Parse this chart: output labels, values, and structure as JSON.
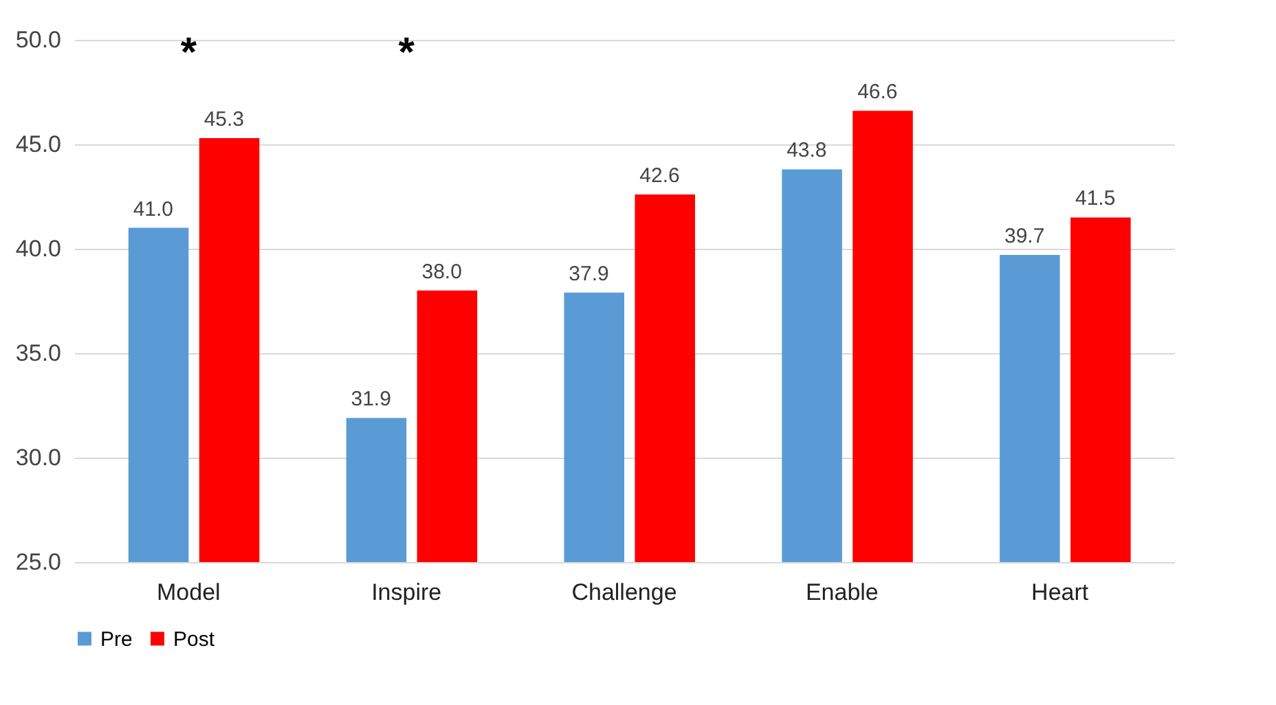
{
  "chart_data": {
    "type": "bar",
    "categories": [
      "Model",
      "Inspire",
      "Challenge",
      "Enable",
      "Heart"
    ],
    "series": [
      {
        "name": "Pre",
        "color": "#5b9bd5",
        "values": [
          41.0,
          31.9,
          37.9,
          43.8,
          39.7
        ],
        "value_labels": [
          "41.0",
          "31.9",
          "37.9",
          "43.8",
          "39.7"
        ]
      },
      {
        "name": "Post",
        "color": "#ff0000",
        "values": [
          45.3,
          38.0,
          42.6,
          46.6,
          41.5
        ],
        "value_labels": [
          "45.3",
          "38.0",
          "42.6",
          "46.6",
          "41.5"
        ]
      }
    ],
    "ylim": [
      25,
      50
    ],
    "yticks": [
      {
        "value": 25,
        "label": "25.0"
      },
      {
        "value": 30,
        "label": "30.0"
      },
      {
        "value": 35,
        "label": "35.0"
      },
      {
        "value": 40,
        "label": "40.0"
      },
      {
        "value": 45,
        "label": "45.0"
      },
      {
        "value": 50,
        "label": "50.0"
      }
    ],
    "grid": "y",
    "legend": "bottom",
    "annotations": [
      "*",
      "*"
    ]
  }
}
